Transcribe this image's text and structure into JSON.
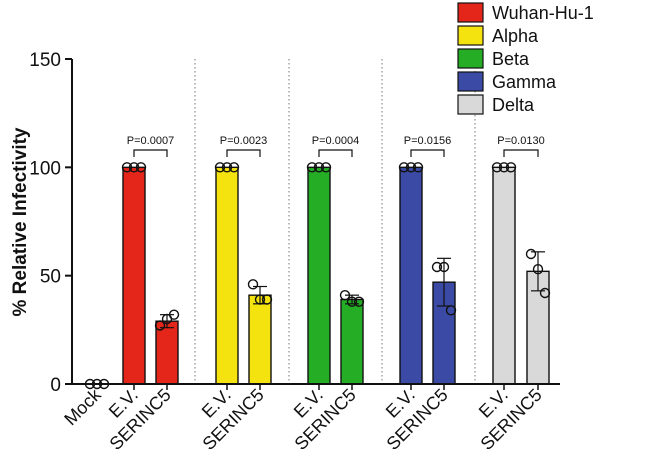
{
  "chart_data": {
    "type": "bar",
    "ylabel": "% Relative Infectivity",
    "ylim": [
      0,
      150
    ],
    "yticks": [
      0,
      50,
      100,
      150
    ],
    "legend": [
      {
        "label": "Wuhan-Hu-1",
        "color": "#e32619"
      },
      {
        "label": "Alpha",
        "color": "#f5e30f"
      },
      {
        "label": "Beta",
        "color": "#25ad26"
      },
      {
        "label": "Gamma",
        "color": "#3a4aa5"
      },
      {
        "label": "Delta",
        "color": "#d9d9d9"
      }
    ],
    "mock": {
      "label": "Mock",
      "value": 0,
      "points": [
        0,
        0,
        0
      ]
    },
    "groups": [
      {
        "name": "Wuhan-Hu-1",
        "color": "#e32619",
        "pvalue": "P=0.0007",
        "bars": [
          {
            "label": "E.V.",
            "value": 100,
            "error": 0,
            "points": [
              100,
              100,
              100
            ]
          },
          {
            "label": "SERINC5",
            "value": 29,
            "error": 3,
            "points": [
              27,
              30,
              32
            ]
          }
        ]
      },
      {
        "name": "Alpha",
        "color": "#f5e30f",
        "pvalue": "P=0.0023",
        "bars": [
          {
            "label": "E.V.",
            "value": 100,
            "error": 0,
            "points": [
              100,
              100,
              100
            ]
          },
          {
            "label": "SERINC5",
            "value": 41,
            "error": 4,
            "points": [
              46,
              39,
              39
            ]
          }
        ]
      },
      {
        "name": "Beta",
        "color": "#25ad26",
        "pvalue": "P=0.0004",
        "bars": [
          {
            "label": "E.V.",
            "value": 100,
            "error": 0,
            "points": [
              100,
              100,
              100
            ]
          },
          {
            "label": "SERINC5",
            "value": 39,
            "error": 2,
            "points": [
              41,
              38,
              38
            ]
          }
        ]
      },
      {
        "name": "Gamma",
        "color": "#3a4aa5",
        "pvalue": "P=0.0156",
        "bars": [
          {
            "label": "E.V.",
            "value": 100,
            "error": 0,
            "points": [
              100,
              100,
              100
            ]
          },
          {
            "label": "SERINC5",
            "value": 47,
            "error": 11,
            "points": [
              54,
              54,
              34
            ]
          }
        ]
      },
      {
        "name": "Delta",
        "color": "#d9d9d9",
        "pvalue": "P=0.0130",
        "bars": [
          {
            "label": "E.V.",
            "value": 100,
            "error": 0,
            "points": [
              100,
              100,
              100
            ]
          },
          {
            "label": "SERINC5",
            "value": 52,
            "error": 9,
            "points": [
              60,
              53,
              42
            ]
          }
        ]
      }
    ]
  }
}
